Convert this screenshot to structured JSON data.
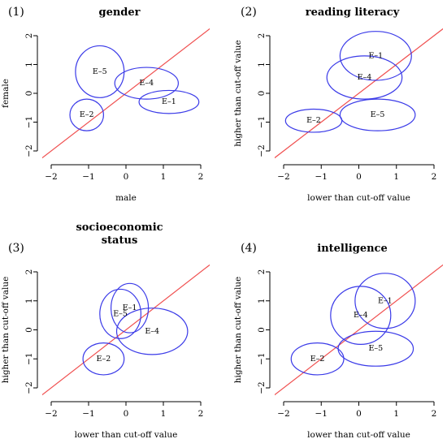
{
  "chart_data": [
    {
      "type": "scatter",
      "panel": "(1)",
      "title": [
        "gender"
      ],
      "xlabel": "male",
      "ylabel": "female",
      "xlim": [
        -2,
        2
      ],
      "ylim": [
        -2,
        2
      ],
      "xticks": [
        -2,
        -1,
        0,
        1,
        2
      ],
      "yticks": [
        -2,
        -1,
        0,
        1,
        2
      ],
      "reference_line": "y = x",
      "ellipses": [
        {
          "label": "E–5",
          "cx": -0.7,
          "cy": 0.75,
          "rx": 0.65,
          "ry": 0.9
        },
        {
          "label": "E–4",
          "cx": 0.55,
          "cy": 0.35,
          "rx": 0.85,
          "ry": 0.55
        },
        {
          "label": "E–1",
          "cx": 1.15,
          "cy": -0.3,
          "rx": 0.8,
          "ry": 0.4
        },
        {
          "label": "E–2",
          "cx": -1.05,
          "cy": -0.75,
          "rx": 0.45,
          "ry": 0.55
        }
      ]
    },
    {
      "type": "scatter",
      "panel": "(2)",
      "title": [
        "reading literacy"
      ],
      "xlabel": "lower than cut-off value",
      "ylabel": "higher than cut-off value",
      "xlim": [
        -2,
        2
      ],
      "ylim": [
        -2,
        2
      ],
      "xticks": [
        -2,
        -1,
        0,
        1,
        2
      ],
      "yticks": [
        -2,
        -1,
        0,
        1,
        2
      ],
      "reference_line": "y = x",
      "ellipses": [
        {
          "label": "E–1",
          "cx": 0.45,
          "cy": 1.3,
          "rx": 0.95,
          "ry": 0.85
        },
        {
          "label": "E–4",
          "cx": 0.15,
          "cy": 0.55,
          "rx": 1.0,
          "ry": 0.75
        },
        {
          "label": "E–2",
          "cx": -1.2,
          "cy": -0.95,
          "rx": 0.75,
          "ry": 0.4
        },
        {
          "label": "E–5",
          "cx": 0.5,
          "cy": -0.75,
          "rx": 1.0,
          "ry": 0.55
        }
      ]
    },
    {
      "type": "scatter",
      "panel": "(3)",
      "title": [
        "socioeconomic",
        "status"
      ],
      "xlabel": "lower than cut-off value",
      "ylabel": "higher than cut-off value",
      "xlim": [
        -2,
        2
      ],
      "ylim": [
        -2,
        2
      ],
      "xticks": [
        -2,
        -1,
        0,
        1,
        2
      ],
      "yticks": [
        -2,
        -1,
        0,
        1,
        2
      ],
      "reference_line": "y = x",
      "ellipses": [
        {
          "label": "E–5",
          "cx": -0.15,
          "cy": 0.55,
          "rx": 0.55,
          "ry": 0.85
        },
        {
          "label": "E–1",
          "cx": 0.1,
          "cy": 0.75,
          "rx": 0.5,
          "ry": 0.85
        },
        {
          "label": "E–4",
          "cx": 0.7,
          "cy": -0.05,
          "rx": 0.95,
          "ry": 0.8
        },
        {
          "label": "E–2",
          "cx": -0.6,
          "cy": -1.0,
          "rx": 0.55,
          "ry": 0.55
        }
      ]
    },
    {
      "type": "scatter",
      "panel": "(4)",
      "title": [
        "intelligence"
      ],
      "xlabel": "lower than cut-off value",
      "ylabel": "higher than cut-off value",
      "xlim": [
        -2,
        2
      ],
      "ylim": [
        -2,
        2
      ],
      "xticks": [
        -2,
        -1,
        0,
        1,
        2
      ],
      "yticks": [
        -2,
        -1,
        0,
        1,
        2
      ],
      "reference_line": "y = x",
      "ellipses": [
        {
          "label": "E–1",
          "cx": 0.7,
          "cy": 1.0,
          "rx": 0.8,
          "ry": 0.95
        },
        {
          "label": "E–4",
          "cx": 0.05,
          "cy": 0.5,
          "rx": 0.8,
          "ry": 1.0
        },
        {
          "label": "E–5",
          "cx": 0.45,
          "cy": -0.65,
          "rx": 1.0,
          "ry": 0.6
        },
        {
          "label": "E–2",
          "cx": -1.1,
          "cy": -1.0,
          "rx": 0.7,
          "ry": 0.55
        }
      ]
    }
  ],
  "colors": {
    "ellipse": "#3a3ae8",
    "reference_line": "#f05050",
    "axis": "#000000"
  }
}
